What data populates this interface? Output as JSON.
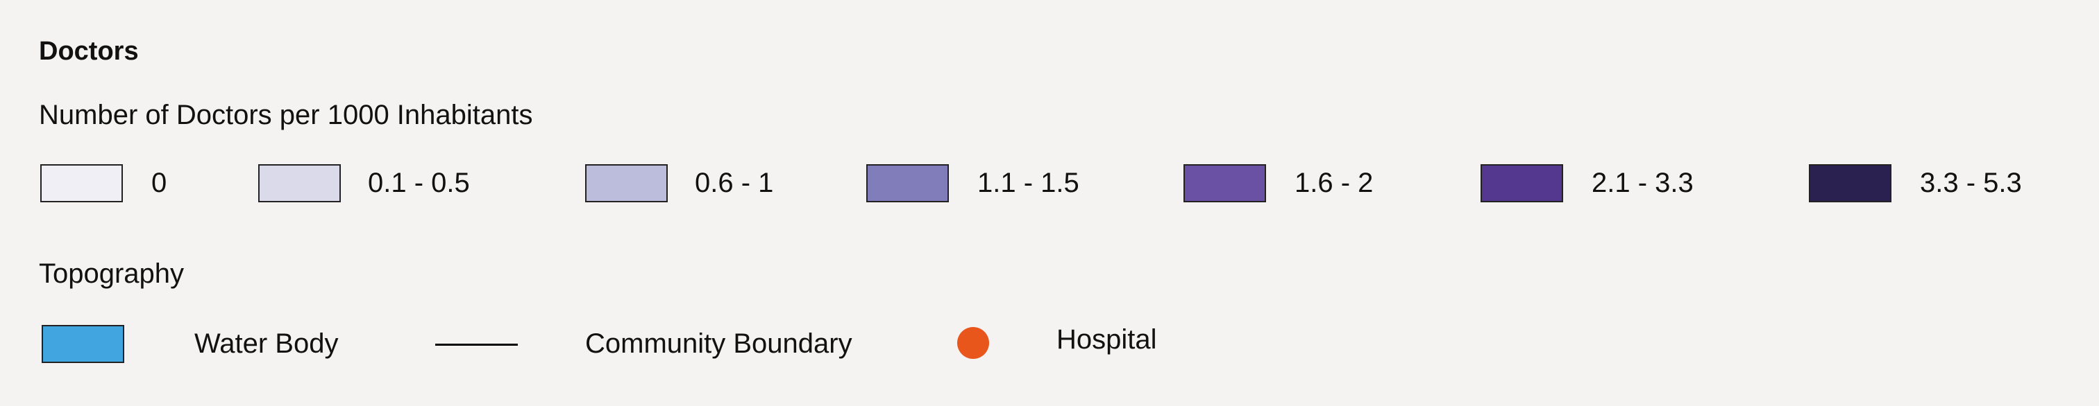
{
  "legend": {
    "title": "Doctors",
    "subtitle": "Number of Doctors per 1000 Inhabitants",
    "classes": [
      {
        "label": "0",
        "color": "#f0eff5"
      },
      {
        "label": "0.1 - 0.5",
        "color": "#dadaeb"
      },
      {
        "label": "0.6 - 1",
        "color": "#bcbddc"
      },
      {
        "label": "1.1 - 1.5",
        "color": "#807dba"
      },
      {
        "label": "1.6 - 2",
        "color": "#6a51a3"
      },
      {
        "label": "2.1 - 3.3",
        "color": "#54388f"
      },
      {
        "label": "3.3 - 5.3",
        "color": "#2b2150"
      }
    ],
    "topography_title": "Topography",
    "topography": [
      {
        "label": "Water Body",
        "symbol": "rect",
        "color": "#41a6df"
      },
      {
        "label": "Community Boundary",
        "symbol": "line",
        "color": "#000000"
      },
      {
        "label": "Hospital",
        "symbol": "circle",
        "color": "#e8561c"
      }
    ]
  }
}
